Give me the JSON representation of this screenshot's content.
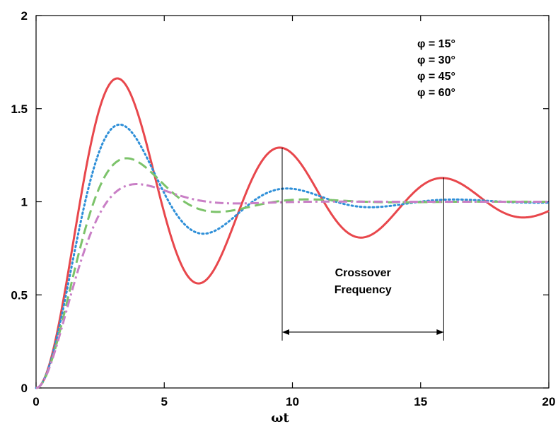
{
  "chart_data": {
    "type": "line",
    "title": "",
    "xlabel": "ωt",
    "ylabel": "",
    "xlim": [
      0,
      20
    ],
    "ylim": [
      0,
      2
    ],
    "grid": false,
    "legend_position": "top-right",
    "x_ticks": [
      "0",
      "5",
      "10",
      "15",
      "20"
    ],
    "y_ticks": [
      "0",
      "0.5",
      "1",
      "1.5",
      "2"
    ],
    "series": [
      {
        "name": "φ = 15°",
        "color": "#e8474c",
        "dash": "solid",
        "zeta": 0.13,
        "omega": 1.0
      },
      {
        "name": "φ = 30°",
        "color": "#2e8fd8",
        "dash": "dotted",
        "zeta": 0.27,
        "omega": 1.0
      },
      {
        "name": "φ = 45°",
        "color": "#7cc36a",
        "dash": "dashed",
        "zeta": 0.42,
        "omega": 0.98
      },
      {
        "name": "φ = 60°",
        "color": "#c97fc6",
        "dash": "dashdot",
        "zeta": 0.6,
        "omega": 1.0
      }
    ],
    "annotation": {
      "lines": [
        "Crossover",
        "Frequency"
      ],
      "x_start": 9.6,
      "x_end": 15.9,
      "y_arrow": 0.3,
      "y_start_top": 1.29,
      "y_end_top": 1.13
    }
  }
}
